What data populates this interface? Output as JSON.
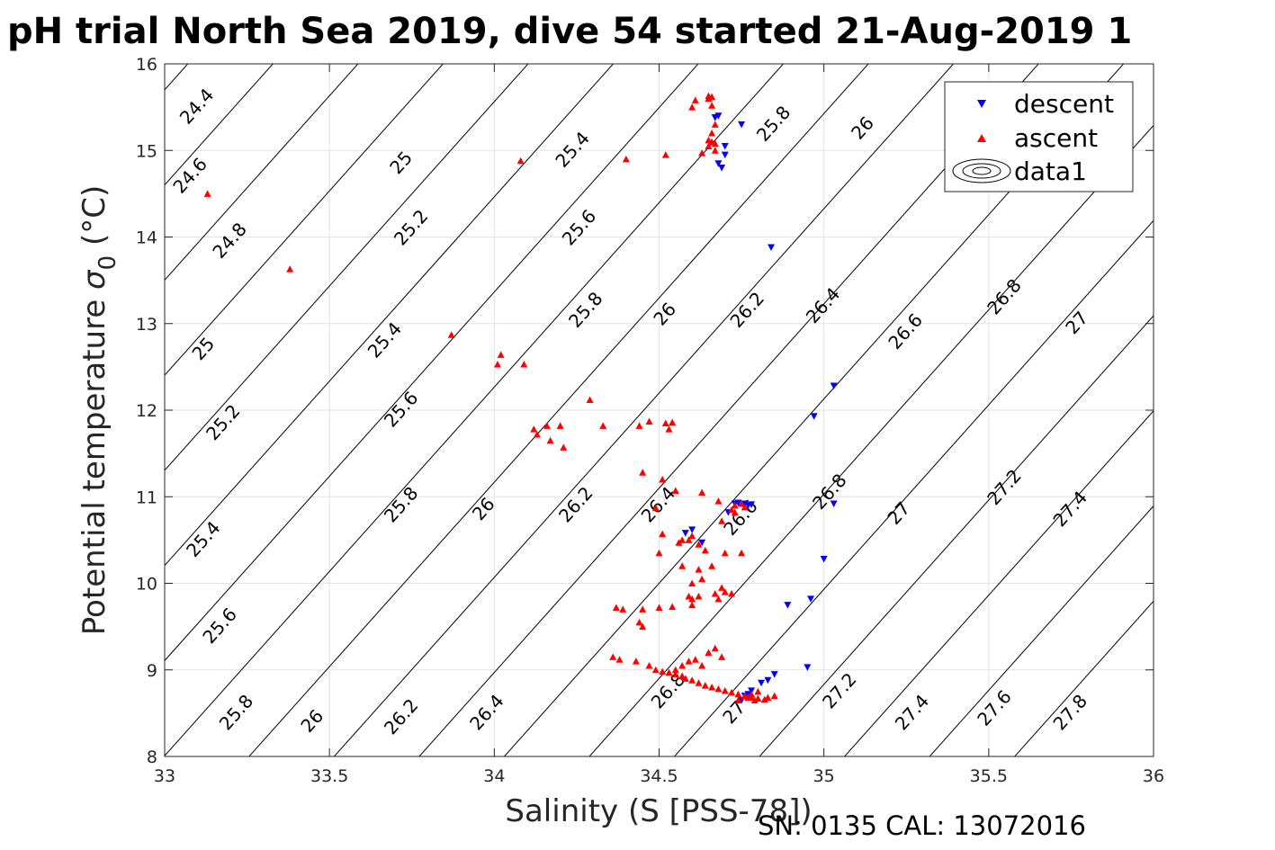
{
  "title": "pH trial North Sea 2019, dive 54 started 21-Aug-2019 1",
  "footnote": "SN: 0135  CAL: 13072016",
  "colors": {
    "descent": "#0000ff",
    "ascent": "#ff0000",
    "grid": "#e3e3e3",
    "axis": "#262626"
  },
  "legend": {
    "position": "top-right",
    "entries": [
      {
        "label": "descent",
        "marker": "triangle-down",
        "color": "#0000ff"
      },
      {
        "label": "ascent",
        "marker": "triangle-up",
        "color": "#ff0000"
      },
      {
        "label": "data1",
        "marker": "contour-icon",
        "color": "#000000"
      }
    ]
  },
  "chart_data": {
    "type": "scatter",
    "xlabel": "Salinity (S [PSS-78])",
    "ylabel_main": "Potential temperature ",
    "ylabel_symbol": "σ",
    "ylabel_sub": "0",
    "ylabel_unit": " (°C)",
    "xlim": [
      33,
      36
    ],
    "ylim": [
      8,
      16
    ],
    "xticks": [
      "33",
      "33.5",
      "34",
      "34.5",
      "35",
      "35.5",
      "36"
    ],
    "yticks": [
      "8",
      "9",
      "10",
      "11",
      "12",
      "13",
      "14",
      "15",
      "16"
    ],
    "grid": true,
    "contours": {
      "levels": [
        24.4,
        24.6,
        24.8,
        25,
        25.2,
        25.4,
        25.6,
        25.8,
        26,
        26.2,
        26.4,
        26.6,
        26.8,
        27,
        27.2,
        27.4,
        27.6,
        27.8
      ],
      "dSigma_dS": 0.775,
      "dSigma_dT": -0.182,
      "ref_sigma": 26.6,
      "ref_S": 34.5,
      "ref_T": 10,
      "labels": [
        {
          "text": "24.4",
          "S": 33.1,
          "T": 15.5
        },
        {
          "text": "24.6",
          "S": 33.08,
          "T": 14.7
        },
        {
          "text": "24.8",
          "S": 33.2,
          "T": 13.95
        },
        {
          "text": "25",
          "S": 33.12,
          "T": 12.7
        },
        {
          "text": "25.2",
          "S": 33.18,
          "T": 11.85
        },
        {
          "text": "25.4",
          "S": 33.12,
          "T": 10.5
        },
        {
          "text": "25.6",
          "S": 33.17,
          "T": 9.5
        },
        {
          "text": "25.8",
          "S": 33.22,
          "T": 8.5
        },
        {
          "text": "26",
          "S": 33.45,
          "T": 8.4
        },
        {
          "text": "26.2",
          "S": 33.72,
          "T": 8.45
        },
        {
          "text": "26.4",
          "S": 33.98,
          "T": 8.5
        },
        {
          "text": "26.8",
          "S": 34.53,
          "T": 8.75
        },
        {
          "text": "27",
          "S": 34.73,
          "T": 8.5
        },
        {
          "text": "27.2",
          "S": 35.05,
          "T": 8.75
        },
        {
          "text": "27.4",
          "S": 35.27,
          "T": 8.5
        },
        {
          "text": "27.6",
          "S": 35.52,
          "T": 8.55
        },
        {
          "text": "27.8",
          "S": 35.75,
          "T": 8.5
        },
        {
          "text": "25",
          "S": 33.72,
          "T": 14.85
        },
        {
          "text": "25.2",
          "S": 33.75,
          "T": 14.1
        },
        {
          "text": "25.4",
          "S": 33.67,
          "T": 12.8
        },
        {
          "text": "25.6",
          "S": 33.72,
          "T": 12.0
        },
        {
          "text": "25.8",
          "S": 33.72,
          "T": 10.9
        },
        {
          "text": "26",
          "S": 33.97,
          "T": 10.85
        },
        {
          "text": "26.2",
          "S": 34.25,
          "T": 10.9
        },
        {
          "text": "26.4",
          "S": 34.5,
          "T": 10.9
        },
        {
          "text": "26.6",
          "S": 34.75,
          "T": 10.75
        },
        {
          "text": "25.4",
          "S": 34.24,
          "T": 15.0
        },
        {
          "text": "25.6",
          "S": 34.26,
          "T": 14.1
        },
        {
          "text": "25.8",
          "S": 34.28,
          "T": 13.15
        },
        {
          "text": "26",
          "S": 34.52,
          "T": 13.1
        },
        {
          "text": "26.2",
          "S": 34.77,
          "T": 13.15
        },
        {
          "text": "26.4",
          "S": 35.0,
          "T": 13.2
        },
        {
          "text": "26.6",
          "S": 35.25,
          "T": 12.9
        },
        {
          "text": "26.8",
          "S": 35.55,
          "T": 13.3
        },
        {
          "text": "27",
          "S": 35.77,
          "T": 13.0
        },
        {
          "text": "25.8",
          "S": 34.85,
          "T": 15.3
        },
        {
          "text": "26",
          "S": 35.12,
          "T": 15.25
        },
        {
          "text": "26.8",
          "S": 35.02,
          "T": 11.05
        },
        {
          "text": "27",
          "S": 35.23,
          "T": 10.8
        },
        {
          "text": "27.2",
          "S": 35.55,
          "T": 11.1
        },
        {
          "text": "27.4",
          "S": 35.75,
          "T": 10.85
        }
      ]
    },
    "series": [
      {
        "name": "descent",
        "marker": "triangle-down",
        "color": "#0000ff",
        "x": [
          34.67,
          34.68,
          34.67,
          34.75,
          34.7,
          34.7,
          34.68,
          34.69,
          34.84,
          35.03,
          34.97,
          35.03,
          34.73,
          34.74,
          34.76,
          34.78,
          34.77,
          34.71,
          34.63,
          34.58,
          34.6,
          35.0,
          34.89,
          34.96,
          34.95,
          34.83,
          34.85,
          34.81,
          34.78,
          34.77,
          34.76,
          34.75
        ],
        "y": [
          15.38,
          15.4,
          15.38,
          15.3,
          15.05,
          14.95,
          14.85,
          14.8,
          13.88,
          12.28,
          11.93,
          10.92,
          10.92,
          10.93,
          10.92,
          10.91,
          10.9,
          10.82,
          10.47,
          10.58,
          10.62,
          10.28,
          9.75,
          9.82,
          9.03,
          8.88,
          8.95,
          8.85,
          8.76,
          8.72,
          8.7,
          8.65
        ]
      },
      {
        "name": "ascent",
        "marker": "triangle-up",
        "color": "#ff0000",
        "x": [
          33.13,
          33.38,
          33.87,
          34.01,
          34.02,
          34.09,
          34.08,
          34.4,
          34.52,
          34.63,
          34.6,
          34.61,
          34.65,
          34.65,
          34.66,
          34.66,
          34.67,
          34.66,
          34.65,
          34.65,
          34.66,
          34.67,
          34.67,
          34.12,
          34.13,
          34.16,
          34.17,
          34.2,
          34.21,
          34.29,
          34.33,
          34.44,
          34.47,
          34.49,
          34.52,
          34.53,
          34.54,
          34.45,
          34.51,
          34.55,
          34.63,
          34.68,
          34.72,
          34.73,
          34.75,
          34.76,
          34.73,
          34.69,
          34.56,
          34.57,
          34.59,
          34.6,
          34.62,
          34.64,
          34.51,
          34.5,
          34.57,
          34.62,
          34.66,
          34.7,
          34.75,
          34.63,
          34.6,
          34.59,
          34.6,
          34.62,
          34.67,
          34.69,
          34.7,
          34.72,
          34.68,
          34.6,
          34.54,
          34.5,
          34.45,
          34.39,
          34.37,
          34.44,
          34.45,
          34.36,
          34.38,
          34.43,
          34.47,
          34.49,
          34.51,
          34.53,
          34.55,
          34.57,
          34.58,
          34.6,
          34.62,
          34.64,
          34.66,
          34.68,
          34.7,
          34.72,
          34.74,
          34.76,
          34.78,
          34.8,
          34.82,
          34.8,
          34.78,
          34.76,
          34.55,
          34.57,
          34.59,
          34.61,
          34.63,
          34.65,
          34.67,
          34.69,
          34.74,
          34.77,
          34.79,
          34.83,
          34.85
        ],
        "y": [
          14.5,
          13.63,
          12.87,
          12.53,
          12.64,
          12.53,
          14.88,
          14.9,
          14.95,
          14.97,
          15.5,
          15.58,
          15.63,
          15.6,
          15.62,
          15.52,
          15.3,
          15.2,
          15.12,
          15.05,
          15.1,
          15.0,
          15.08,
          11.78,
          11.72,
          11.82,
          11.65,
          11.82,
          11.57,
          12.12,
          11.82,
          11.82,
          11.87,
          10.87,
          11.85,
          11.78,
          11.86,
          11.28,
          11.2,
          11.07,
          11.05,
          10.95,
          10.85,
          10.9,
          10.92,
          10.88,
          10.82,
          10.72,
          10.47,
          10.5,
          10.5,
          10.55,
          10.45,
          10.38,
          10.57,
          10.35,
          10.2,
          10.16,
          10.2,
          10.35,
          10.35,
          10.05,
          10.0,
          9.85,
          9.82,
          9.85,
          9.88,
          9.95,
          9.9,
          9.88,
          9.82,
          9.75,
          9.73,
          9.72,
          9.7,
          9.7,
          9.72,
          9.55,
          9.5,
          9.15,
          9.12,
          9.1,
          9.05,
          9.0,
          8.98,
          8.97,
          8.95,
          8.93,
          8.9,
          8.88,
          8.85,
          8.82,
          8.8,
          8.78,
          8.76,
          8.74,
          8.72,
          8.7,
          8.68,
          8.67,
          8.66,
          8.75,
          8.72,
          8.7,
          9.0,
          9.05,
          9.1,
          9.12,
          9.05,
          9.2,
          9.25,
          9.15,
          8.65,
          8.68,
          8.65,
          8.68,
          8.7
        ]
      }
    ]
  }
}
